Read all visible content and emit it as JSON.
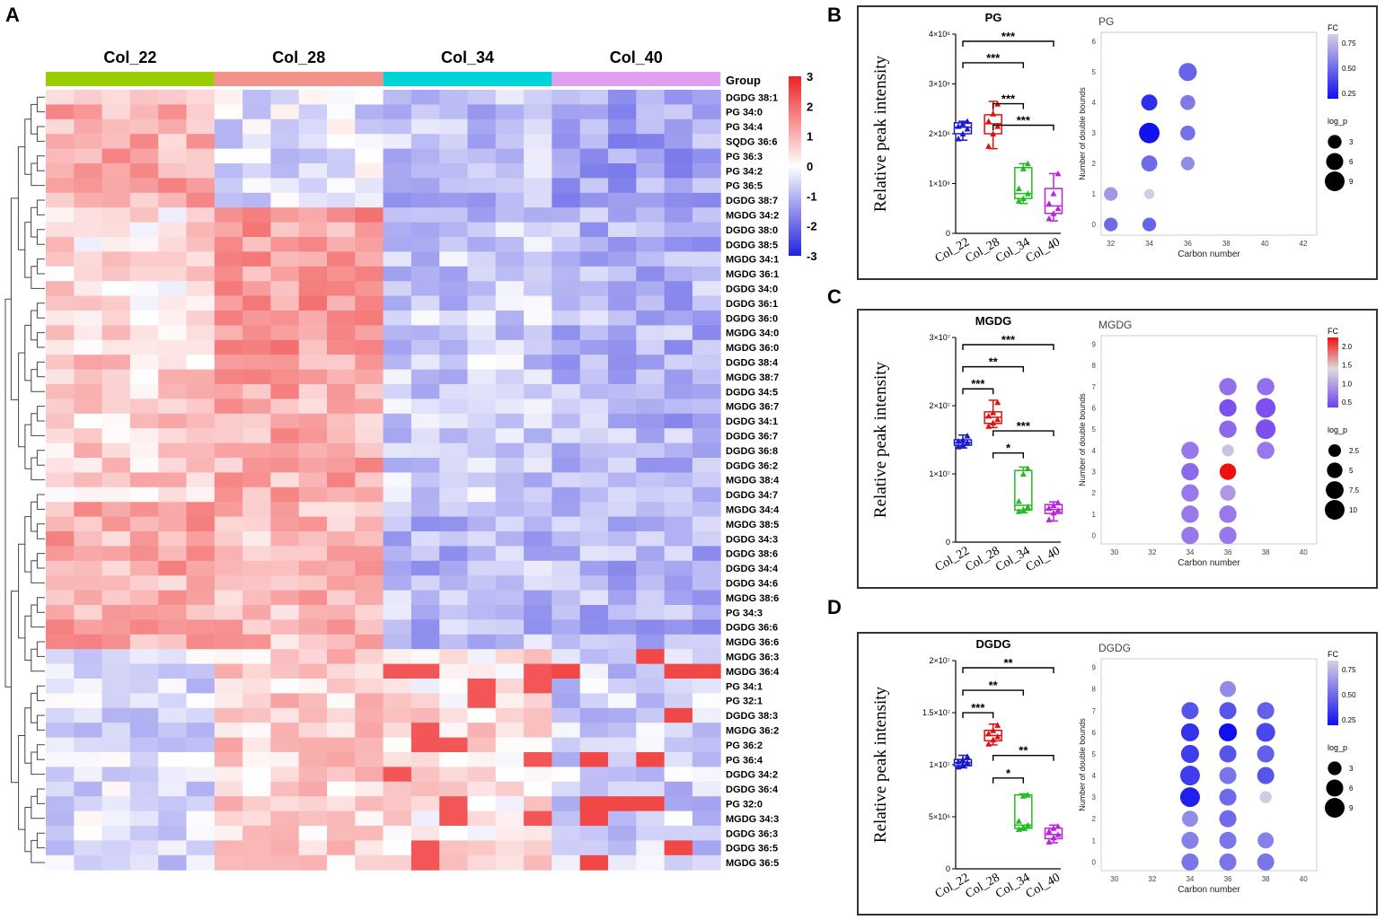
{
  "panel_labels": {
    "A": "A",
    "B": "B",
    "C": "C",
    "D": "D"
  },
  "heatmap": {
    "groups": [
      {
        "name": "Col_22",
        "color": "#9acd00"
      },
      {
        "name": "Col_28",
        "color": "#f4918a"
      },
      {
        "name": "Col_34",
        "color": "#00d4d8"
      },
      {
        "name": "Col_40",
        "color": "#e0a0f2"
      }
    ],
    "group_label": "Group",
    "samples_per_group": 6,
    "rows": [
      "DGDG 38:1",
      "PG 34:0",
      "PG 34:4",
      "SQDG 36:6",
      "PG 36:3",
      "PG 34:2",
      "PG 36:5",
      "DGDG 38:7",
      "MGDG 34:2",
      "DGDG 38:0",
      "DGDG 38:5",
      "MGDG 34:1",
      "MGDG 36:1",
      "DGDG 34:0",
      "DGDG 36:1",
      "DGDG 36:0",
      "MGDG 34:0",
      "MGDG 36:0",
      "DGDG 38:4",
      "MGDG 38:7",
      "DGDG 34:5",
      "MGDG 36:7",
      "DGDG 34:1",
      "DGDG 36:7",
      "DGDG 36:8",
      "DGDG 36:2",
      "MGDG 38:4",
      "DGDG 34:7",
      "MGDG 34:4",
      "MGDG 38:5",
      "DGDG 34:3",
      "DGDG 38:6",
      "DGDG 34:4",
      "DGDG 34:6",
      "MGDG 38:6",
      "PG 34:3",
      "DGDG 36:6",
      "MGDG 36:6",
      "MGDG 36:3",
      "MGDG 36:4",
      "PG 34:1",
      "PG 32:1",
      "DGDG 38:3",
      "MGDG 36:2",
      "PG 36:2",
      "PG 36:4",
      "DGDG 34:2",
      "DGDG 36:4",
      "PG 32:0",
      "MGDG 34:3",
      "DGDG 36:3",
      "DGDG 36:5",
      "MGDG 36:5"
    ],
    "legend_ticks": [
      "3",
      "2",
      "1",
      "0",
      "-1",
      "-2",
      "-3"
    ],
    "legend_colors": {
      "high": "#ee2222",
      "mid": "#ffffff",
      "low": "#2222dd"
    }
  },
  "chart_data": [
    {
      "type": "box",
      "name": "PG",
      "title": "PG",
      "ylabel": "Relative peak intensity",
      "ytick_labels": [
        "0",
        "1×10⁶",
        "2×10⁶",
        "3×10⁶",
        "4×10⁶"
      ],
      "ylim": [
        0,
        4000000
      ],
      "categories": [
        "Col_22",
        "Col_28",
        "Col_34",
        "Col_40"
      ],
      "colors": [
        "#1a1acc",
        "#e01010",
        "#22bb22",
        "#bb22dd"
      ],
      "boxes": [
        {
          "min": 1870000,
          "q1": 2000000,
          "median": 2130000,
          "q3": 2220000,
          "max": 2250000
        },
        {
          "min": 1700000,
          "q1": 2000000,
          "median": 2200000,
          "q3": 2380000,
          "max": 2650000
        },
        {
          "min": 600000,
          "q1": 700000,
          "median": 800000,
          "q3": 1320000,
          "max": 1400000
        },
        {
          "min": 250000,
          "q1": 400000,
          "median": 550000,
          "q3": 900000,
          "max": 1200000
        }
      ],
      "points": [
        [
          1900000,
          2000000,
          2100000,
          2150000,
          2200000,
          2250000
        ],
        [
          1750000,
          2000000,
          2150000,
          2250000,
          2400000,
          2600000
        ],
        [
          650000,
          700000,
          800000,
          900000,
          1300000,
          1400000
        ],
        [
          300000,
          400000,
          500000,
          600000,
          800000,
          1200000
        ]
      ],
      "significance": [
        {
          "from": 0,
          "to": 3,
          "label": "***"
        },
        {
          "from": 0,
          "to": 2,
          "label": "***"
        },
        {
          "from": 1,
          "to": 2,
          "label": "***"
        },
        {
          "from": 1,
          "to": 3,
          "label": "***"
        }
      ]
    },
    {
      "type": "scatter",
      "name": "PG_bubble",
      "title": "PG",
      "xlabel": "Carbon number",
      "ylabel": "Number of double bounds",
      "xticks": [
        32,
        34,
        36,
        38,
        40,
        42
      ],
      "yticks": [
        0,
        1,
        2,
        3,
        4,
        5,
        6
      ],
      "xlim": [
        31.5,
        42.7
      ],
      "ylim": [
        -0.35,
        6.3
      ],
      "fc_title": "FC",
      "fc_ticks": [
        "0.75",
        "0.50",
        "0.25"
      ],
      "fc_range": [
        0.05,
        0.9
      ],
      "size_title": "log_p",
      "size_ticks": [
        3,
        6,
        9
      ],
      "points": [
        {
          "x": 32,
          "y": 0,
          "fc": 0.45,
          "log_p": 3
        },
        {
          "x": 32,
          "y": 1,
          "fc": 0.65,
          "log_p": 3
        },
        {
          "x": 34,
          "y": 0,
          "fc": 0.42,
          "log_p": 3
        },
        {
          "x": 34,
          "y": 1,
          "fc": 0.88,
          "log_p": 1
        },
        {
          "x": 34,
          "y": 2,
          "fc": 0.45,
          "log_p": 5
        },
        {
          "x": 34,
          "y": 3,
          "fc": 0.06,
          "log_p": 10
        },
        {
          "x": 34,
          "y": 4,
          "fc": 0.18,
          "log_p": 5
        },
        {
          "x": 36,
          "y": 2,
          "fc": 0.6,
          "log_p": 3
        },
        {
          "x": 36,
          "y": 3,
          "fc": 0.48,
          "log_p": 4
        },
        {
          "x": 36,
          "y": 4,
          "fc": 0.52,
          "log_p": 4
        },
        {
          "x": 36,
          "y": 5,
          "fc": 0.42,
          "log_p": 7
        }
      ]
    },
    {
      "type": "box",
      "name": "MGDG",
      "title": "MGDG",
      "ylabel": "Relative peak intensity",
      "ytick_labels": [
        "0",
        "1×10⁷",
        "2×10⁷",
        "3×10⁷"
      ],
      "ylim": [
        0,
        30000000
      ],
      "categories": [
        "Col_22",
        "Col_28",
        "Col_34",
        "Col_40"
      ],
      "colors": [
        "#1a1acc",
        "#e01010",
        "#22bb22",
        "#bb22dd"
      ],
      "boxes": [
        {
          "min": 13800000,
          "q1": 14200000,
          "median": 14600000,
          "q3": 15000000,
          "max": 15700000
        },
        {
          "min": 16800000,
          "q1": 17400000,
          "median": 18300000,
          "q3": 19100000,
          "max": 20800000
        },
        {
          "min": 4300000,
          "q1": 4700000,
          "median": 5400000,
          "q3": 10500000,
          "max": 11000000
        },
        {
          "min": 3100000,
          "q1": 4200000,
          "median": 4800000,
          "q3": 5500000,
          "max": 5900000
        }
      ],
      "points": [
        [
          14000000,
          14300000,
          14600000,
          14800000,
          15000000,
          15600000
        ],
        [
          17000000,
          17500000,
          18000000,
          18500000,
          19000000,
          20500000
        ],
        [
          4500000,
          4800000,
          5200000,
          6000000,
          10000000,
          10800000
        ],
        [
          3300000,
          4300000,
          4700000,
          5000000,
          5400000,
          5800000
        ]
      ],
      "significance": [
        {
          "from": 0,
          "to": 3,
          "label": "***"
        },
        {
          "from": 0,
          "to": 2,
          "label": "**"
        },
        {
          "from": 0,
          "to": 1,
          "label": "***"
        },
        {
          "from": 1,
          "to": 3,
          "label": "***"
        },
        {
          "from": 1,
          "to": 2,
          "label": "*"
        }
      ]
    },
    {
      "type": "scatter",
      "name": "MGDG_bubble",
      "title": "MGDG",
      "xlabel": "Carbon number",
      "ylabel": "Number of double bounds",
      "xticks": [
        30,
        32,
        34,
        36,
        38,
        40
      ],
      "yticks": [
        0,
        1,
        2,
        3,
        4,
        5,
        6,
        7,
        8,
        9
      ],
      "xlim": [
        29.3,
        40.7
      ],
      "ylim": [
        -0.4,
        9.4
      ],
      "fc_title": "FC",
      "fc_ticks": [
        "2.0",
        "1.5",
        "1.0",
        "0.5"
      ],
      "fc_range": [
        0.1,
        2.2
      ],
      "size_title": "log_p",
      "size_ticks": [
        2.5,
        5.0,
        7.5,
        10.0
      ],
      "points": [
        {
          "x": 34,
          "y": 0,
          "fc": 0.55,
          "log_p": 7
        },
        {
          "x": 34,
          "y": 1,
          "fc": 0.55,
          "log_p": 7
        },
        {
          "x": 34,
          "y": 2,
          "fc": 0.55,
          "log_p": 7
        },
        {
          "x": 34,
          "y": 3,
          "fc": 0.45,
          "log_p": 7
        },
        {
          "x": 34,
          "y": 4,
          "fc": 0.55,
          "log_p": 7
        },
        {
          "x": 36,
          "y": 0,
          "fc": 0.55,
          "log_p": 7
        },
        {
          "x": 36,
          "y": 1,
          "fc": 0.55,
          "log_p": 7
        },
        {
          "x": 36,
          "y": 2,
          "fc": 0.75,
          "log_p": 5
        },
        {
          "x": 36,
          "y": 3,
          "fc": 2.1,
          "log_p": 6
        },
        {
          "x": 36,
          "y": 4,
          "fc": 1.0,
          "log_p": 2
        },
        {
          "x": 36,
          "y": 5,
          "fc": 0.45,
          "log_p": 7
        },
        {
          "x": 36,
          "y": 6,
          "fc": 0.3,
          "log_p": 7
        },
        {
          "x": 36,
          "y": 7,
          "fc": 0.5,
          "log_p": 7
        },
        {
          "x": 38,
          "y": 4,
          "fc": 0.55,
          "log_p": 7
        },
        {
          "x": 38,
          "y": 5,
          "fc": 0.3,
          "log_p": 10
        },
        {
          "x": 38,
          "y": 6,
          "fc": 0.3,
          "log_p": 10
        },
        {
          "x": 38,
          "y": 7,
          "fc": 0.5,
          "log_p": 7
        }
      ]
    },
    {
      "type": "box",
      "name": "DGDG",
      "title": "DGDG",
      "ylabel": "Relative peak intensity",
      "ytick_labels": [
        "0",
        "5×10⁶",
        "1×10⁷",
        "1.5×10⁷",
        "2×10⁷"
      ],
      "ylim": [
        0,
        20000000
      ],
      "categories": [
        "Col_22",
        "Col_28",
        "Col_34",
        "Col_40"
      ],
      "colors": [
        "#1a1acc",
        "#e01010",
        "#22bb22",
        "#bb22dd"
      ],
      "boxes": [
        {
          "min": 9700000,
          "q1": 9900000,
          "median": 10200000,
          "q3": 10500000,
          "max": 10900000
        },
        {
          "min": 11900000,
          "q1": 12300000,
          "median": 12800000,
          "q3": 13300000,
          "max": 13900000
        },
        {
          "min": 3700000,
          "q1": 3900000,
          "median": 4200000,
          "q3": 7100000,
          "max": 7200000
        },
        {
          "min": 2500000,
          "q1": 2900000,
          "median": 3300000,
          "q3": 3900000,
          "max": 4200000
        }
      ],
      "points": [
        [
          9800000,
          10000000,
          10200000,
          10300000,
          10500000,
          10800000
        ],
        [
          12000000,
          12400000,
          12700000,
          13000000,
          13300000,
          13800000
        ],
        [
          3800000,
          4000000,
          4200000,
          4600000,
          7000000,
          7100000
        ],
        [
          2600000,
          3000000,
          3300000,
          3600000,
          3900000,
          4100000
        ]
      ],
      "significance": [
        {
          "from": 0,
          "to": 3,
          "label": "**"
        },
        {
          "from": 0,
          "to": 2,
          "label": "**"
        },
        {
          "from": 0,
          "to": 1,
          "label": "***"
        },
        {
          "from": 1,
          "to": 3,
          "label": "**"
        },
        {
          "from": 1,
          "to": 2,
          "label": "*"
        }
      ]
    },
    {
      "type": "scatter",
      "name": "DGDG_bubble",
      "title": "DGDG",
      "xlabel": "Carbon number",
      "ylabel": "Number of double bounds",
      "xticks": [
        30,
        32,
        34,
        36,
        38,
        40
      ],
      "yticks": [
        0,
        1,
        2,
        3,
        4,
        5,
        6,
        7,
        8,
        9
      ],
      "xlim": [
        29.3,
        40.7
      ],
      "ylim": [
        -0.4,
        9.4
      ],
      "fc_title": "FC",
      "fc_ticks": [
        "0.75",
        "0.50",
        "0.25"
      ],
      "fc_range": [
        0.05,
        0.9
      ],
      "size_title": "log_p",
      "size_ticks": [
        3,
        6,
        9
      ],
      "points": [
        {
          "x": 34,
          "y": 0,
          "fc": 0.5,
          "log_p": 6
        },
        {
          "x": 34,
          "y": 1,
          "fc": 0.55,
          "log_p": 6
        },
        {
          "x": 34,
          "y": 2,
          "fc": 0.6,
          "log_p": 5
        },
        {
          "x": 34,
          "y": 3,
          "fc": 0.12,
          "log_p": 9
        },
        {
          "x": 34,
          "y": 4,
          "fc": 0.25,
          "log_p": 9
        },
        {
          "x": 34,
          "y": 5,
          "fc": 0.25,
          "log_p": 7
        },
        {
          "x": 34,
          "y": 6,
          "fc": 0.2,
          "log_p": 7
        },
        {
          "x": 34,
          "y": 7,
          "fc": 0.35,
          "log_p": 6
        },
        {
          "x": 36,
          "y": 0,
          "fc": 0.5,
          "log_p": 6
        },
        {
          "x": 36,
          "y": 1,
          "fc": 0.5,
          "log_p": 6
        },
        {
          "x": 36,
          "y": 2,
          "fc": 0.45,
          "log_p": 6
        },
        {
          "x": 36,
          "y": 3,
          "fc": 0.45,
          "log_p": 6
        },
        {
          "x": 36,
          "y": 4,
          "fc": 0.5,
          "log_p": 6
        },
        {
          "x": 36,
          "y": 5,
          "fc": 0.35,
          "log_p": 6
        },
        {
          "x": 36,
          "y": 6,
          "fc": 0.05,
          "log_p": 7
        },
        {
          "x": 36,
          "y": 7,
          "fc": 0.35,
          "log_p": 6
        },
        {
          "x": 36,
          "y": 8,
          "fc": 0.6,
          "log_p": 5
        },
        {
          "x": 38,
          "y": 0,
          "fc": 0.5,
          "log_p": 6
        },
        {
          "x": 38,
          "y": 1,
          "fc": 0.55,
          "log_p": 5
        },
        {
          "x": 38,
          "y": 3,
          "fc": 0.88,
          "log_p": 2
        },
        {
          "x": 38,
          "y": 4,
          "fc": 0.35,
          "log_p": 6
        },
        {
          "x": 38,
          "y": 5,
          "fc": 0.4,
          "log_p": 6
        },
        {
          "x": 38,
          "y": 6,
          "fc": 0.3,
          "log_p": 8
        },
        {
          "x": 38,
          "y": 7,
          "fc": 0.4,
          "log_p": 6
        }
      ]
    }
  ]
}
